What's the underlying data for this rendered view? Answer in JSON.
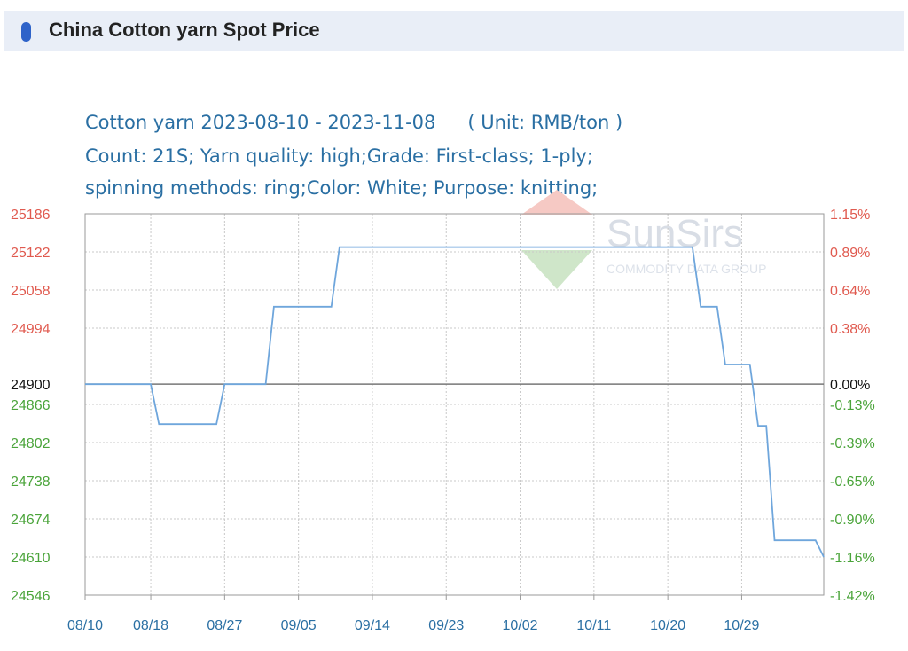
{
  "header": {
    "title": "China Cotton yarn Spot Price"
  },
  "chart_subtitle": {
    "line1": "Cotton yarn 2023-08-10 - 2023-11-08",
    "unit": "( Unit: RMB/ton )",
    "line2": "Count: 21S; Yarn quality: high;Grade: First-class; 1-ply;",
    "line3": "spinning methods: ring;Color: White; Purpose: knitting;"
  },
  "watermark": {
    "brand": "SunSirs",
    "tagline": "COMMODITY DATA GROUP"
  },
  "colors": {
    "line": "#6fa6dc",
    "up": "#e05a4f",
    "down": "#4aa43a",
    "neutral": "#111111",
    "grid": "#c8c8c8",
    "axis": "#9a9a9a",
    "title": "#2a6fa3"
  },
  "chart_data": {
    "type": "line",
    "x_start": "08/10",
    "x_end": "11/08",
    "xticks": [
      "08/10",
      "08/18",
      "08/27",
      "09/05",
      "09/14",
      "09/23",
      "10/02",
      "10/11",
      "10/20",
      "10/29"
    ],
    "ylim": [
      24546,
      25186
    ],
    "yticks_left": [
      25186,
      25122,
      25058,
      24994,
      24900,
      24866,
      24802,
      24738,
      24674,
      24610,
      24546
    ],
    "yticks_right": [
      "1.15%",
      "0.89%",
      "0.64%",
      "0.38%",
      "0.00%",
      "-0.13%",
      "-0.39%",
      "-0.65%",
      "-0.90%",
      "-1.16%",
      "-1.42%"
    ],
    "baseline": 24900,
    "grid": true,
    "series": [
      {
        "points": [
          [
            "08/10",
            24900
          ],
          [
            "08/18",
            24900
          ],
          [
            "08/19",
            24833
          ],
          [
            "08/26",
            24833
          ],
          [
            "08/27",
            24900
          ],
          [
            "09/01",
            24900
          ],
          [
            "09/02",
            25030
          ],
          [
            "09/09",
            25030
          ],
          [
            "09/10",
            25130
          ],
          [
            "10/23",
            25130
          ],
          [
            "10/24",
            25030
          ],
          [
            "10/26",
            25030
          ],
          [
            "10/27",
            24933
          ],
          [
            "10/30",
            24933
          ],
          [
            "10/31",
            24830
          ],
          [
            "11/01",
            24830
          ],
          [
            "11/02",
            24638
          ],
          [
            "11/07",
            24638
          ],
          [
            "11/08",
            24610
          ]
        ]
      }
    ]
  }
}
